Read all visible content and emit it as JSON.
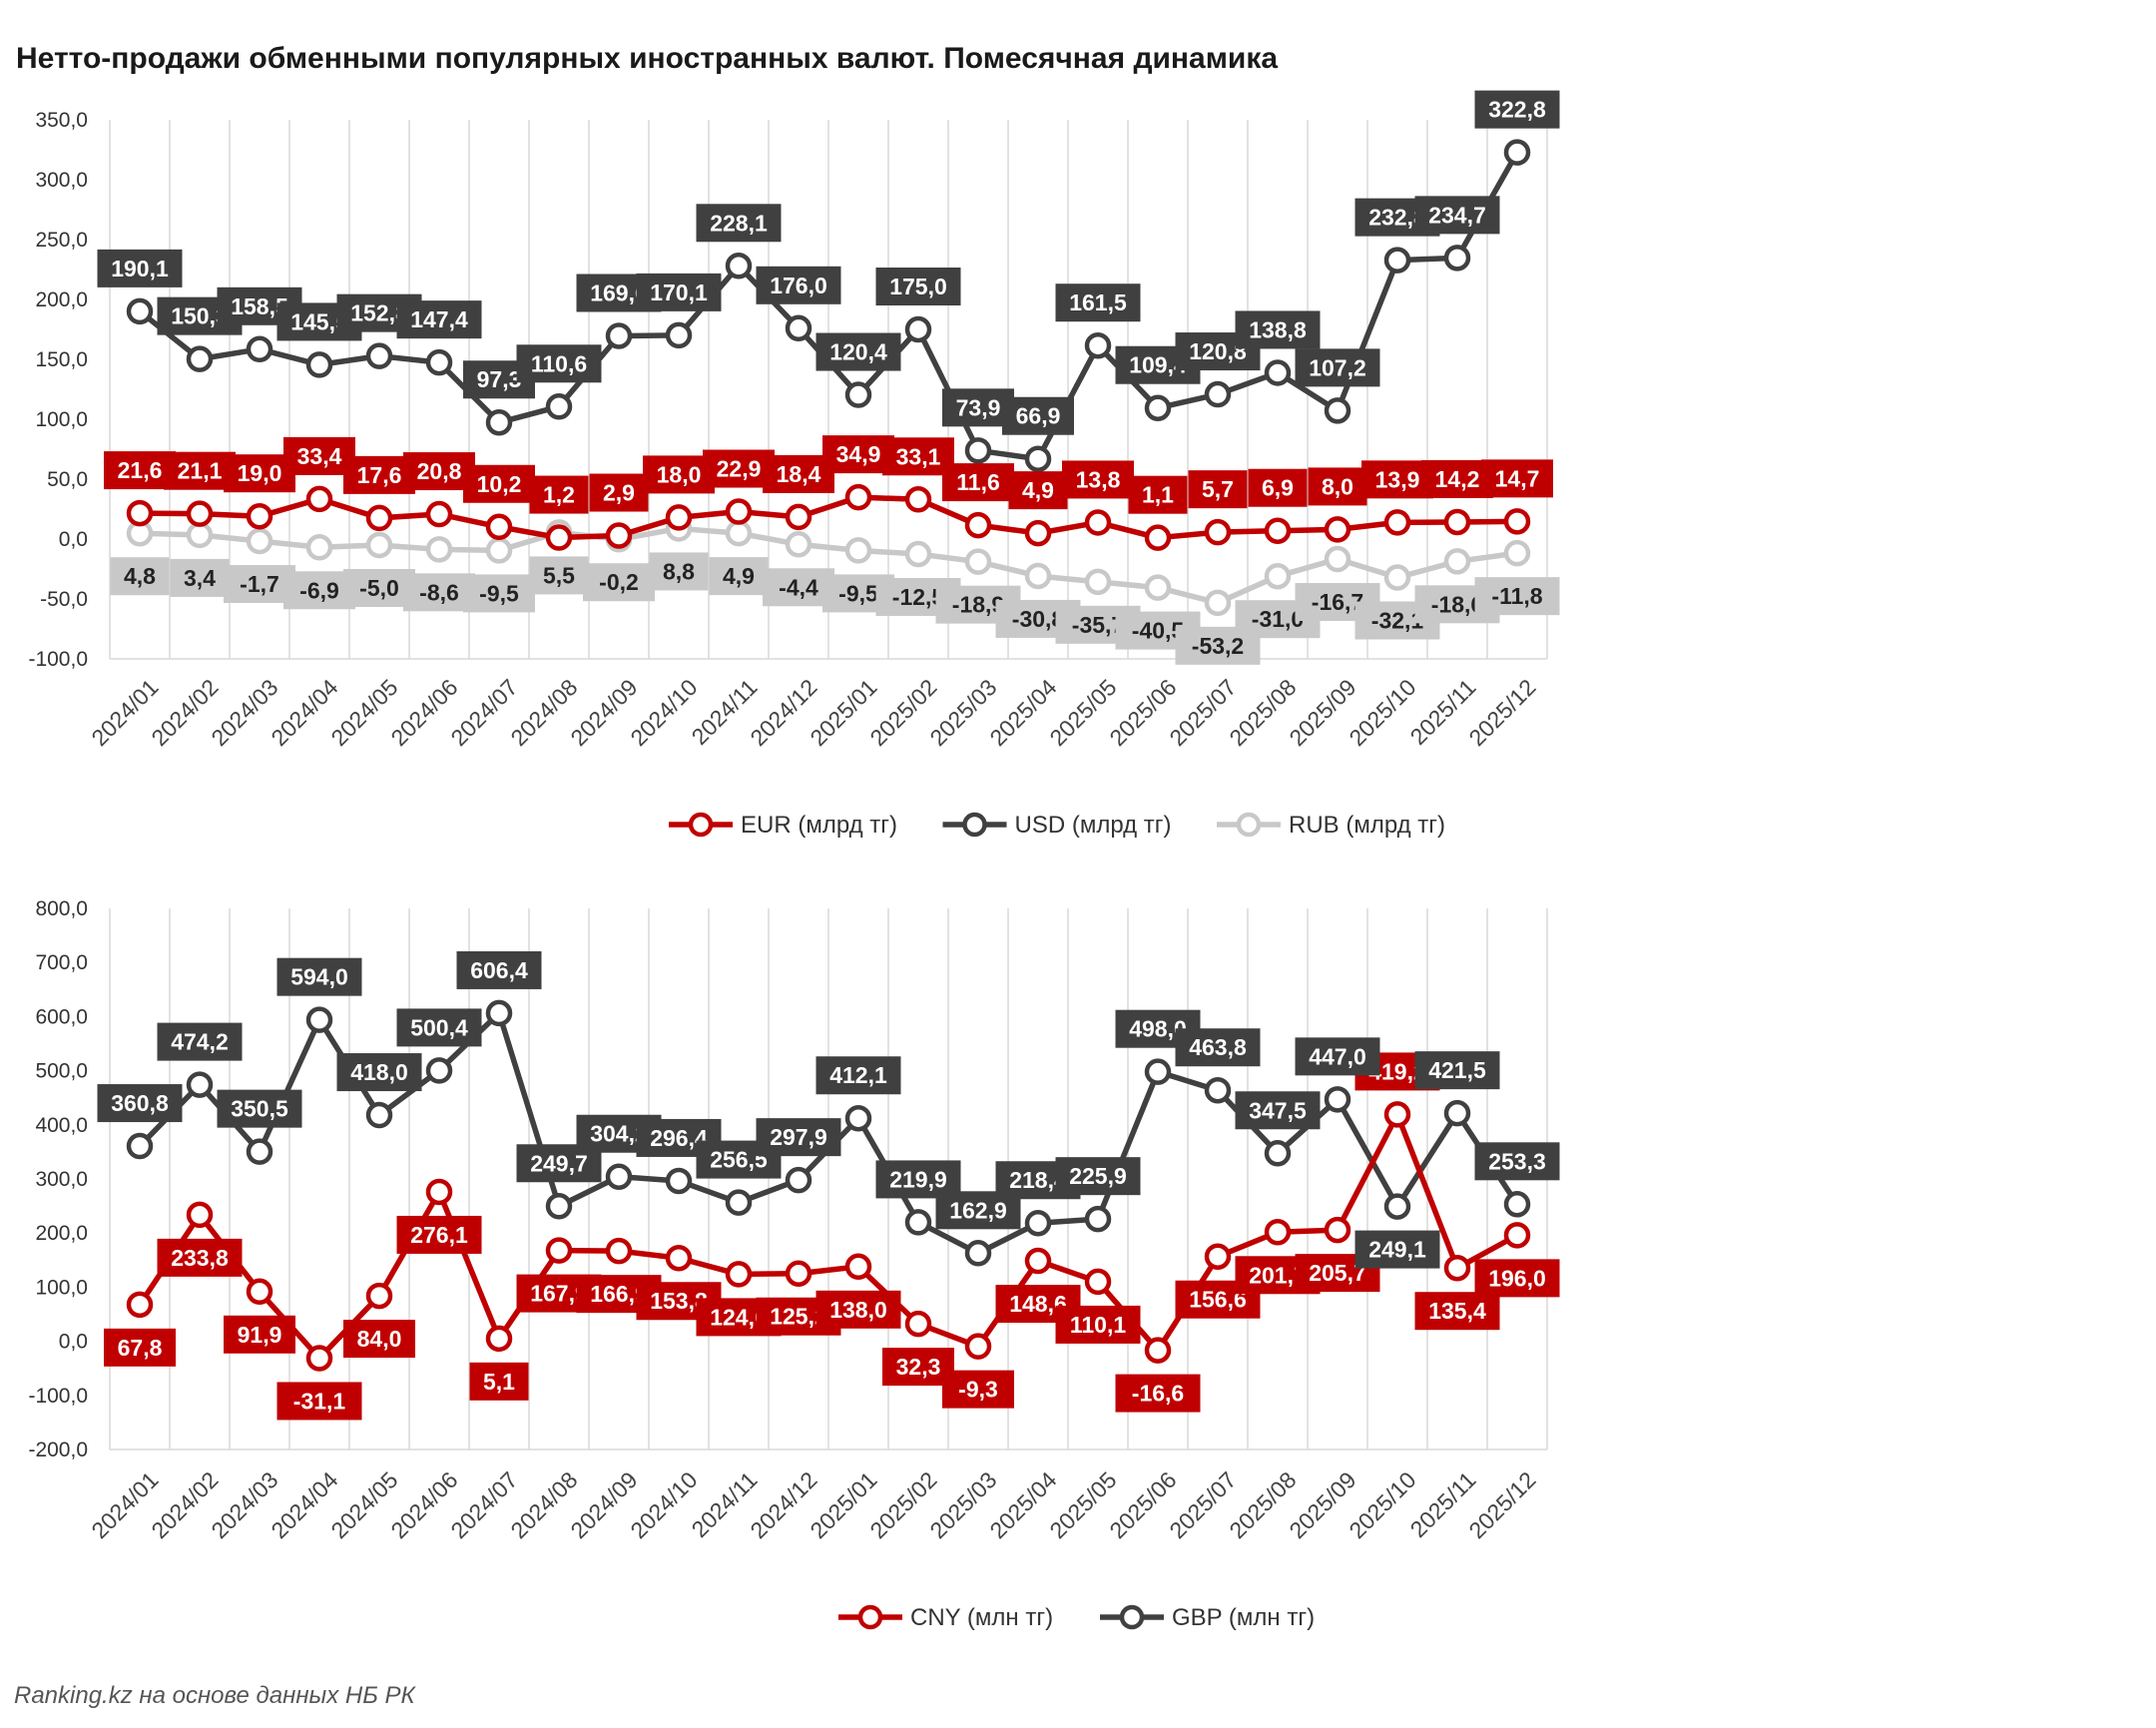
{
  "title": "Нетто-продажи обменными популярных иностранных валют. Помесячная динамика",
  "source": "Ranking.kz на основе данных НБ РК",
  "colors": {
    "EUR": "#c00000",
    "USD": "#404040",
    "RUB": "#c8c8c8",
    "CNY": "#c00000",
    "GBP": "#404040",
    "grid": "#d9d9d9"
  },
  "chart_data": [
    {
      "type": "line",
      "categories": [
        "2024/01",
        "2024/02",
        "2024/03",
        "2024/04",
        "2024/05",
        "2024/06",
        "2024/07",
        "2024/08",
        "2024/09",
        "2024/10",
        "2024/11",
        "2024/12",
        "2025/01",
        "2025/02",
        "2025/03",
        "2025/04",
        "2025/05",
        "2025/06",
        "2025/07",
        "2025/08",
        "2025/09",
        "2025/10",
        "2025/11",
        "2025/12"
      ],
      "ylim": [
        -100,
        350
      ],
      "ytick_step": 50,
      "yticks": [
        "-100,0",
        "-50,0",
        "0,0",
        "50,0",
        "100,0",
        "150,0",
        "200,0",
        "250,0",
        "300,0",
        "350,0"
      ],
      "grid": "vertical",
      "legend_position": "bottom",
      "series": [
        {
          "name": "EUR (млрд тг)",
          "color": "#c00000",
          "label_position": "above",
          "values": [
            21.6,
            21.1,
            19.0,
            33.4,
            17.6,
            20.8,
            10.2,
            1.2,
            2.9,
            18.0,
            22.9,
            18.4,
            34.9,
            33.1,
            11.6,
            4.9,
            13.8,
            1.1,
            5.7,
            6.9,
            8.0,
            13.9,
            14.2,
            14.7
          ],
          "labels": [
            "21,6",
            "21,1",
            "19,0",
            "33,4",
            "17,6",
            "20,8",
            "10,2",
            "1,2",
            "2,9",
            "18,0",
            "22,9",
            "18,4",
            "34,9",
            "33,1",
            "11,6",
            "4,9",
            "13,8",
            "1,1",
            "5,7",
            "6,9",
            "8,0",
            "13,9",
            "14,2",
            "14,7"
          ]
        },
        {
          "name": "USD (млрд тг)",
          "color": "#404040",
          "label_position": "above",
          "values": [
            190.1,
            150.3,
            158.5,
            145.5,
            152.8,
            147.4,
            97.3,
            110.6,
            169.6,
            170.1,
            228.1,
            176.0,
            120.4,
            175.0,
            73.9,
            66.9,
            161.5,
            109.4,
            120.8,
            138.8,
            107.2,
            232.8,
            234.7,
            322.8
          ],
          "labels": [
            "190,1",
            "150,3",
            "158,5",
            "145,5",
            "152,8",
            "147,4",
            "97,3",
            "110,6",
            "169,6",
            "170,1",
            "228,1",
            "176,0",
            "120,4",
            "175,0",
            "73,9",
            "66,9",
            "161,5",
            "109,4",
            "120,8",
            "138,8",
            "107,2",
            "232,8",
            "234,7",
            "322,8"
          ]
        },
        {
          "name": "RUB (млрд тг)",
          "color": "#c8c8c8",
          "label_position": "below",
          "values": [
            4.8,
            3.4,
            -1.7,
            -6.9,
            -5.0,
            -8.6,
            -9.5,
            5.5,
            -0.2,
            8.8,
            4.9,
            -4.4,
            -9.5,
            -12.5,
            -18.9,
            -30.8,
            -35.7,
            -40.5,
            -53.2,
            -31.0,
            -16.7,
            -32.1,
            -18.6,
            -11.8
          ],
          "labels": [
            "4,8",
            "3,4",
            "-1,7",
            "-6,9",
            "-5,0",
            "-8,6",
            "-9,5",
            "5,5",
            "-0,2",
            "8,8",
            "4,9",
            "-4,4",
            "-9,5",
            "-12,5",
            "-18,9",
            "-30,8",
            "-35,7",
            "-40,5",
            "-53,2",
            "-31,0",
            "-16,7",
            "-32,1",
            "-18,6",
            "-11,8"
          ]
        }
      ]
    },
    {
      "type": "line",
      "categories": [
        "2024/01",
        "2024/02",
        "2024/03",
        "2024/04",
        "2024/05",
        "2024/06",
        "2024/07",
        "2024/08",
        "2024/09",
        "2024/10",
        "2024/11",
        "2024/12",
        "2025/01",
        "2025/02",
        "2025/03",
        "2025/04",
        "2025/05",
        "2025/06",
        "2025/07",
        "2025/08",
        "2025/09",
        "2025/10",
        "2025/11",
        "2025/12"
      ],
      "ylim": [
        -200,
        800
      ],
      "ytick_step": 100,
      "yticks": [
        "-200,0",
        "-100,0",
        "0,0",
        "100,0",
        "200,0",
        "300,0",
        "400,0",
        "500,0",
        "600,0",
        "700,0",
        "800,0"
      ],
      "grid": "vertical",
      "legend_position": "bottom",
      "series": [
        {
          "name": "CNY (млн тг)",
          "color": "#c00000",
          "label_position": "below",
          "values": [
            67.8,
            233.8,
            91.9,
            -31.1,
            84.0,
            276.1,
            5.1,
            167.9,
            166.9,
            153.8,
            124.0,
            125.2,
            138.0,
            32.3,
            -9.3,
            148.6,
            110.1,
            -16.6,
            156.6,
            201.7,
            205.7,
            419.2,
            135.4,
            196.0
          ],
          "labels": [
            "67,8",
            "233,8",
            "91,9",
            "-31,1",
            "84,0",
            "276,1",
            "5,1",
            "167,9",
            "166,9",
            "153,8",
            "124,0",
            "125,2",
            "138,0",
            "32,3",
            "-9,3",
            "148,6",
            "110,1",
            "-16,6",
            "156,6",
            "201,7",
            "205,7",
            "419,2",
            "135,4",
            "196,0"
          ],
          "label_position_overrides": {
            "21": "above"
          }
        },
        {
          "name": "GBP (млн тг)",
          "color": "#404040",
          "label_position": "above",
          "values": [
            360.8,
            474.2,
            350.5,
            594.0,
            418.0,
            500.4,
            606.4,
            249.7,
            304.2,
            296.4,
            256.5,
            297.9,
            412.1,
            219.9,
            162.9,
            218.4,
            225.9,
            498.0,
            463.8,
            347.5,
            447.0,
            249.1,
            421.5,
            253.3
          ],
          "labels": [
            "360,8",
            "474,2",
            "350,5",
            "594,0",
            "418,0",
            "500,4",
            "606,4",
            "249,7",
            "304,2",
            "296,4",
            "256,5",
            "297,9",
            "412,1",
            "219,9",
            "162,9",
            "218,4",
            "225,9",
            "498,0",
            "463,8",
            "347,5",
            "447,0",
            "249,1",
            "421,5",
            "253,3"
          ],
          "label_position_overrides": {
            "21": "below"
          }
        }
      ]
    }
  ]
}
